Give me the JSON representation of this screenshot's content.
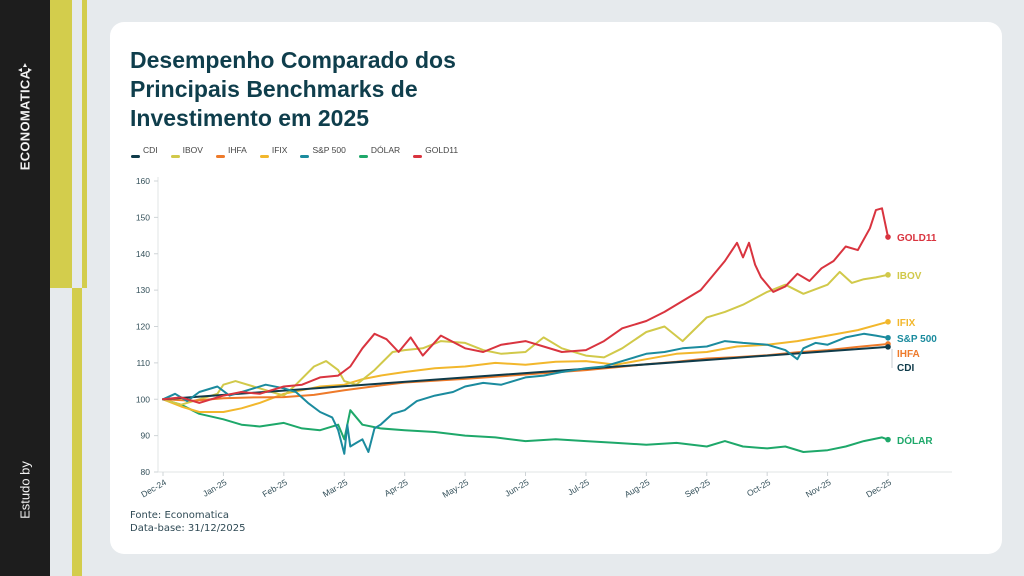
{
  "sidebar": {
    "brand": "ECONOMATICA",
    "byline": "Estudo by"
  },
  "title": "Desempenho Comparado dos Principais Benchmarks de Investimento em 2025",
  "source": {
    "line1": "Fonte: Economatica",
    "line2": "Data-base: 31/12/2025"
  },
  "colors": {
    "background": "#e6eaed",
    "sidebar": "#1d1d1d",
    "accent": "#d3cd4c",
    "title": "#0f3e4c"
  },
  "chart_data": {
    "type": "line",
    "title": "Desempenho Comparado dos Principais Benchmarks de Investimento em 2025",
    "xlabel": "",
    "ylabel": "",
    "ylim": [
      80,
      160
    ],
    "yticks": [
      80,
      90,
      100,
      110,
      120,
      130,
      140,
      150,
      160
    ],
    "xticks": [
      "Dec-24",
      "Jan-25",
      "Feb-25",
      "Mar-25",
      "Apr-25",
      "May-25",
      "Jun-25",
      "Jul-25",
      "Aug-25",
      "Sep-25",
      "Oct-25",
      "Nov-25",
      "Dec-25"
    ],
    "x_unit": "months since Dec-24",
    "grid": false,
    "legend": "top-left",
    "series": [
      {
        "name": "CDI",
        "color": "#0f3b4a",
        "end_label": "CDI",
        "x": [
          0,
          12
        ],
        "values": [
          100,
          114.4
        ]
      },
      {
        "name": "IBOV",
        "color": "#d1c94a",
        "end_label": "IBOV",
        "x": [
          0,
          0.3,
          0.6,
          0.9,
          1.0,
          1.2,
          1.5,
          1.8,
          2.0,
          2.2,
          2.5,
          2.7,
          2.9,
          3.0,
          3.2,
          3.5,
          3.8,
          4.0,
          4.3,
          4.6,
          5.0,
          5.3,
          5.6,
          6.0,
          6.3,
          6.6,
          7.0,
          7.3,
          7.6,
          8.0,
          8.3,
          8.6,
          9.0,
          9.3,
          9.6,
          10.0,
          10.3,
          10.6,
          11.0,
          11.2,
          11.4,
          11.6,
          11.8,
          12.0
        ],
        "values": [
          100,
          98.5,
          100,
          101.5,
          104,
          105,
          103.5,
          102,
          101,
          104,
          109,
          110.5,
          108,
          105,
          104,
          108,
          113,
          113.5,
          114,
          116,
          115.5,
          113.5,
          112.5,
          113,
          117,
          114,
          112,
          111.5,
          114,
          118.5,
          120,
          116,
          122.5,
          124,
          126,
          129.5,
          131.5,
          129,
          131.5,
          135,
          132,
          133,
          133.5,
          134.2
        ]
      },
      {
        "name": "IHFA",
        "color": "#ee7a2a",
        "end_label": "IHFA",
        "x": [
          0,
          0.5,
          1.0,
          1.5,
          2.0,
          2.5,
          3.0,
          3.5,
          4.0,
          5.0,
          6.0,
          7.0,
          7.5,
          8.0,
          8.5,
          9.0,
          9.5,
          10.0,
          10.5,
          11.0,
          11.5,
          12.0
        ],
        "values": [
          100,
          99.6,
          100.3,
          100.5,
          100.6,
          101.2,
          102.5,
          103.6,
          104.6,
          105.6,
          106.8,
          108,
          108.8,
          109.6,
          110.3,
          111.2,
          111.6,
          112.1,
          112.9,
          113.5,
          114.4,
          115.2
        ]
      },
      {
        "name": "IFIX",
        "color": "#f2b72c",
        "end_label": "IFIX",
        "x": [
          0,
          0.3,
          0.6,
          1.0,
          1.3,
          1.6,
          2.0,
          2.3,
          2.6,
          3.0,
          3.3,
          3.6,
          4.0,
          4.5,
          5.0,
          5.5,
          6.0,
          6.5,
          7.0,
          7.5,
          8.0,
          8.5,
          9.0,
          9.5,
          10.0,
          10.5,
          11.0,
          11.5,
          12.0
        ],
        "values": [
          100,
          98,
          96.5,
          96.5,
          97.5,
          99,
          101.5,
          102.5,
          103.5,
          104,
          105.5,
          106.5,
          107.5,
          108.5,
          109,
          110,
          109.5,
          110.3,
          110.5,
          109.5,
          111,
          112.5,
          113,
          114.5,
          115,
          116,
          117.5,
          119,
          121.3
        ]
      },
      {
        "name": "S&P 500",
        "color": "#1b8b9e",
        "end_label": "S&P 500",
        "x": [
          0,
          0.2,
          0.4,
          0.6,
          0.9,
          1.1,
          1.4,
          1.7,
          2.0,
          2.2,
          2.4,
          2.6,
          2.8,
          2.9,
          3.0,
          3.05,
          3.1,
          3.2,
          3.3,
          3.4,
          3.5,
          3.6,
          3.8,
          4.0,
          4.2,
          4.5,
          4.8,
          5.0,
          5.3,
          5.6,
          6.0,
          6.3,
          6.6,
          7.0,
          7.3,
          7.6,
          8.0,
          8.3,
          8.6,
          9.0,
          9.3,
          9.6,
          10.0,
          10.3,
          10.5,
          10.6,
          10.8,
          11.0,
          11.3,
          11.6,
          11.8,
          12.0
        ],
        "values": [
          100,
          101.5,
          99.5,
          102,
          103.5,
          101,
          102.5,
          104,
          103,
          102,
          99,
          96.5,
          95,
          91.5,
          85,
          93,
          87,
          88,
          89,
          85.5,
          92,
          93,
          96,
          97,
          99.5,
          101,
          102,
          103.5,
          104.5,
          104,
          106,
          106.5,
          107.5,
          108.5,
          109,
          110.5,
          112.5,
          113,
          114,
          114.5,
          116,
          115.5,
          115,
          113.5,
          111,
          114,
          115.5,
          115,
          117,
          118,
          117.5,
          116.9
        ]
      },
      {
        "name": "DÓLAR",
        "color": "#1ea86a",
        "end_label": "DÓLAR",
        "x": [
          0,
          0.3,
          0.6,
          1.0,
          1.3,
          1.6,
          2.0,
          2.3,
          2.6,
          2.9,
          3.0,
          3.1,
          3.3,
          3.6,
          4.0,
          4.5,
          5.0,
          5.5,
          6.0,
          6.5,
          7.0,
          7.5,
          8.0,
          8.5,
          9.0,
          9.3,
          9.6,
          10.0,
          10.3,
          10.6,
          11.0,
          11.3,
          11.6,
          11.9,
          12.0
        ],
        "values": [
          100,
          98.5,
          96,
          94.5,
          93,
          92.5,
          93.5,
          92,
          91.5,
          93,
          89,
          97,
          93,
          92,
          91.5,
          91,
          90,
          89.5,
          88.5,
          89,
          88.5,
          88,
          87.5,
          88,
          87,
          88.5,
          87,
          86.5,
          87,
          85.5,
          86,
          87,
          88.5,
          89.5,
          88.9
        ]
      },
      {
        "name": "GOLD11",
        "color": "#d9343f",
        "end_label": "GOLD11",
        "x": [
          0,
          0.3,
          0.6,
          1.0,
          1.3,
          1.6,
          2.0,
          2.3,
          2.6,
          2.9,
          3.1,
          3.3,
          3.5,
          3.7,
          3.9,
          4.1,
          4.3,
          4.6,
          5.0,
          5.3,
          5.6,
          6.0,
          6.3,
          6.6,
          7.0,
          7.3,
          7.6,
          8.0,
          8.3,
          8.6,
          8.9,
          9.1,
          9.3,
          9.5,
          9.6,
          9.7,
          9.8,
          9.9,
          10.1,
          10.3,
          10.5,
          10.7,
          10.9,
          11.1,
          11.3,
          11.5,
          11.7,
          11.8,
          11.9,
          12.0
        ],
        "values": [
          100,
          100.5,
          99,
          101,
          102,
          101.5,
          103.5,
          104,
          106,
          106.5,
          109,
          114,
          118,
          116.5,
          113,
          117,
          112,
          117.5,
          114,
          113,
          115,
          116,
          114.5,
          113,
          113.5,
          116,
          119.5,
          121.5,
          124,
          127,
          130,
          134,
          138,
          143,
          139,
          143,
          137,
          133.5,
          129.5,
          131,
          134.5,
          132.5,
          136,
          138,
          142,
          141,
          147,
          152,
          152.5,
          144.6
        ]
      }
    ]
  }
}
